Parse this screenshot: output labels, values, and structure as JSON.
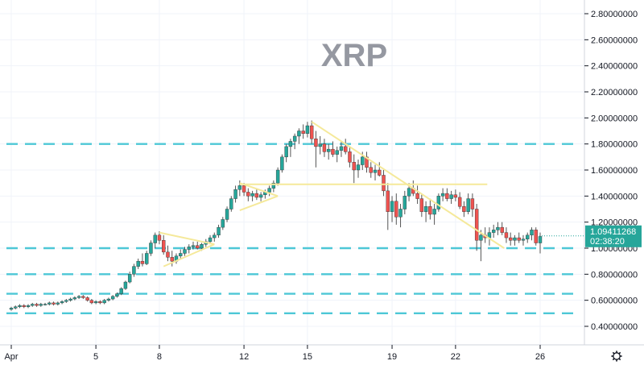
{
  "chart_data": {
    "type": "candlestick",
    "title": "XRP",
    "ylim": [
      0.3,
      2.9
    ],
    "y_ticks": [
      "2.80000000",
      "2.60000000",
      "2.40000000",
      "2.20000000",
      "2.00000000",
      "1.80000000",
      "1.60000000",
      "1.40000000",
      "1.20000000",
      "1.00000000",
      "0.80000000",
      "0.60000000",
      "0.40000000"
    ],
    "y_tick_values": [
      2.8,
      2.6,
      2.4,
      2.2,
      2.0,
      1.8,
      1.6,
      1.4,
      1.2,
      1.0,
      0.8,
      0.6,
      0.4
    ],
    "x_ticks": [
      "Apr",
      "5",
      "8",
      "12",
      "15",
      "19",
      "22",
      "26"
    ],
    "x_tick_days": [
      1,
      5,
      8,
      12,
      15,
      19,
      22,
      26
    ],
    "current_price": "1.09411268",
    "countdown": "02:38:20",
    "current_price_value": 1.0941,
    "support_resistance_levels": [
      1.8,
      1.0,
      0.8,
      0.65,
      0.5
    ],
    "yellow_lines": [
      {
        "from": [
          7.0,
          1.12
        ],
        "to": [
          9.6,
          1.03
        ]
      },
      {
        "from": [
          7.2,
          0.86
        ],
        "to": [
          9.6,
          1.03
        ]
      },
      {
        "from": [
          10.8,
          1.5
        ],
        "to": [
          12.6,
          1.4
        ]
      },
      {
        "from": [
          10.8,
          1.29
        ],
        "to": [
          12.6,
          1.4
        ]
      },
      {
        "from": [
          10.8,
          1.49
        ],
        "to": [
          22.5,
          1.49
        ]
      },
      {
        "from": [
          14.2,
          1.97
        ],
        "to": [
          23.3,
          1.0
        ]
      }
    ],
    "candles": [
      [
        0.0,
        0.53,
        0.55,
        0.52,
        0.54
      ],
      [
        0.2,
        0.54,
        0.56,
        0.53,
        0.55
      ],
      [
        0.4,
        0.55,
        0.57,
        0.54,
        0.56
      ],
      [
        0.6,
        0.56,
        0.57,
        0.54,
        0.55
      ],
      [
        0.8,
        0.55,
        0.57,
        0.54,
        0.56
      ],
      [
        1.0,
        0.56,
        0.58,
        0.55,
        0.57
      ],
      [
        1.2,
        0.57,
        0.58,
        0.55,
        0.56
      ],
      [
        1.4,
        0.56,
        0.58,
        0.55,
        0.57
      ],
      [
        1.6,
        0.57,
        0.58,
        0.56,
        0.57
      ],
      [
        1.8,
        0.57,
        0.59,
        0.56,
        0.58
      ],
      [
        2.0,
        0.58,
        0.59,
        0.56,
        0.57
      ],
      [
        2.2,
        0.57,
        0.59,
        0.56,
        0.58
      ],
      [
        2.4,
        0.58,
        0.6,
        0.57,
        0.59
      ],
      [
        2.6,
        0.59,
        0.61,
        0.58,
        0.6
      ],
      [
        2.8,
        0.6,
        0.62,
        0.59,
        0.61
      ],
      [
        3.0,
        0.61,
        0.63,
        0.6,
        0.62
      ],
      [
        3.2,
        0.62,
        0.64,
        0.61,
        0.63
      ],
      [
        3.4,
        0.63,
        0.64,
        0.61,
        0.62
      ],
      [
        3.6,
        0.62,
        0.63,
        0.59,
        0.6
      ],
      [
        3.8,
        0.6,
        0.61,
        0.57,
        0.58
      ],
      [
        4.0,
        0.58,
        0.6,
        0.57,
        0.59
      ],
      [
        4.2,
        0.59,
        0.6,
        0.57,
        0.58
      ],
      [
        4.4,
        0.58,
        0.61,
        0.57,
        0.6
      ],
      [
        4.6,
        0.6,
        0.62,
        0.59,
        0.61
      ],
      [
        4.8,
        0.61,
        0.64,
        0.6,
        0.63
      ],
      [
        5.0,
        0.63,
        0.66,
        0.62,
        0.65
      ],
      [
        5.2,
        0.65,
        0.7,
        0.64,
        0.69
      ],
      [
        5.4,
        0.69,
        0.75,
        0.68,
        0.74
      ],
      [
        5.6,
        0.74,
        0.82,
        0.73,
        0.8
      ],
      [
        5.8,
        0.8,
        0.88,
        0.78,
        0.86
      ],
      [
        6.0,
        0.86,
        0.92,
        0.84,
        0.9
      ],
      [
        6.2,
        0.9,
        0.96,
        0.86,
        0.88
      ],
      [
        6.4,
        0.88,
        0.98,
        0.87,
        0.96
      ],
      [
        6.6,
        0.96,
        1.06,
        0.94,
        1.04
      ],
      [
        6.8,
        1.04,
        1.12,
        1.0,
        1.1
      ],
      [
        7.0,
        1.1,
        1.13,
        1.03,
        1.06
      ],
      [
        7.2,
        1.06,
        1.1,
        0.95,
        0.97
      ],
      [
        7.4,
        0.97,
        1.02,
        0.9,
        0.93
      ],
      [
        7.6,
        0.93,
        0.98,
        0.86,
        0.9
      ],
      [
        7.8,
        0.9,
        0.96,
        0.88,
        0.94
      ],
      [
        8.0,
        0.94,
        0.99,
        0.92,
        0.96
      ],
      [
        8.2,
        0.96,
        1.01,
        0.94,
        0.99
      ],
      [
        8.4,
        0.99,
        1.03,
        0.96,
        1.01
      ],
      [
        8.6,
        1.01,
        1.05,
        0.99,
        1.02
      ],
      [
        8.8,
        1.02,
        1.05,
        0.99,
        1.0
      ],
      [
        9.0,
        1.0,
        1.04,
        0.98,
        1.03
      ],
      [
        9.2,
        1.03,
        1.07,
        1.01,
        1.05
      ],
      [
        9.4,
        1.05,
        1.1,
        1.03,
        1.08
      ],
      [
        9.6,
        1.08,
        1.12,
        1.05,
        1.1
      ],
      [
        9.8,
        1.1,
        1.18,
        1.08,
        1.16
      ],
      [
        10.0,
        1.16,
        1.24,
        1.14,
        1.22
      ],
      [
        10.2,
        1.22,
        1.32,
        1.2,
        1.3
      ],
      [
        10.4,
        1.3,
        1.4,
        1.28,
        1.38
      ],
      [
        10.6,
        1.38,
        1.48,
        1.35,
        1.45
      ],
      [
        10.8,
        1.45,
        1.52,
        1.4,
        1.48
      ],
      [
        11.0,
        1.48,
        1.5,
        1.4,
        1.43
      ],
      [
        11.2,
        1.43,
        1.46,
        1.36,
        1.4
      ],
      [
        11.4,
        1.4,
        1.44,
        1.36,
        1.42
      ],
      [
        11.6,
        1.42,
        1.45,
        1.37,
        1.39
      ],
      [
        11.8,
        1.39,
        1.43,
        1.36,
        1.41
      ],
      [
        12.0,
        1.41,
        1.45,
        1.38,
        1.43
      ],
      [
        12.2,
        1.43,
        1.48,
        1.4,
        1.46
      ],
      [
        12.4,
        1.46,
        1.52,
        1.43,
        1.5
      ],
      [
        12.6,
        1.5,
        1.62,
        1.48,
        1.6
      ],
      [
        12.8,
        1.6,
        1.72,
        1.58,
        1.7
      ],
      [
        13.0,
        1.7,
        1.8,
        1.66,
        1.78
      ],
      [
        13.2,
        1.78,
        1.84,
        1.7,
        1.82
      ],
      [
        13.4,
        1.82,
        1.88,
        1.76,
        1.86
      ],
      [
        13.6,
        1.86,
        1.92,
        1.8,
        1.9
      ],
      [
        13.8,
        1.9,
        1.95,
        1.84,
        1.88
      ],
      [
        14.0,
        1.88,
        1.97,
        1.85,
        1.94
      ],
      [
        14.2,
        1.94,
        1.98,
        1.8,
        1.84
      ],
      [
        14.4,
        1.84,
        1.9,
        1.62,
        1.78
      ],
      [
        14.6,
        1.78,
        1.86,
        1.72,
        1.8
      ],
      [
        14.8,
        1.8,
        1.84,
        1.7,
        1.74
      ],
      [
        15.0,
        1.74,
        1.8,
        1.68,
        1.76
      ],
      [
        15.2,
        1.76,
        1.82,
        1.7,
        1.72
      ],
      [
        15.4,
        1.72,
        1.78,
        1.66,
        1.75
      ],
      [
        15.6,
        1.75,
        1.82,
        1.7,
        1.78
      ],
      [
        15.8,
        1.78,
        1.84,
        1.72,
        1.74
      ],
      [
        16.0,
        1.74,
        1.78,
        1.62,
        1.66
      ],
      [
        16.2,
        1.66,
        1.72,
        1.5,
        1.6
      ],
      [
        16.4,
        1.6,
        1.68,
        1.54,
        1.64
      ],
      [
        16.6,
        1.64,
        1.74,
        1.6,
        1.7
      ],
      [
        16.8,
        1.7,
        1.74,
        1.58,
        1.62
      ],
      [
        17.0,
        1.62,
        1.66,
        1.54,
        1.58
      ],
      [
        17.2,
        1.58,
        1.64,
        1.52,
        1.6
      ],
      [
        17.4,
        1.6,
        1.66,
        1.55,
        1.56
      ],
      [
        17.6,
        1.56,
        1.6,
        1.4,
        1.44
      ],
      [
        17.8,
        1.44,
        1.5,
        1.14,
        1.28
      ],
      [
        18.0,
        1.28,
        1.4,
        1.2,
        1.36
      ],
      [
        18.2,
        1.36,
        1.42,
        1.18,
        1.24
      ],
      [
        18.4,
        1.24,
        1.34,
        1.16,
        1.3
      ],
      [
        18.6,
        1.3,
        1.44,
        1.26,
        1.4
      ],
      [
        18.8,
        1.4,
        1.5,
        1.36,
        1.46
      ],
      [
        19.0,
        1.46,
        1.52,
        1.4,
        1.42
      ],
      [
        19.2,
        1.42,
        1.48,
        1.34,
        1.38
      ],
      [
        19.4,
        1.38,
        1.42,
        1.24,
        1.28
      ],
      [
        19.6,
        1.28,
        1.36,
        1.2,
        1.32
      ],
      [
        19.8,
        1.32,
        1.38,
        1.22,
        1.26
      ],
      [
        20.0,
        1.26,
        1.34,
        1.18,
        1.3
      ],
      [
        20.2,
        1.3,
        1.42,
        1.28,
        1.4
      ],
      [
        20.4,
        1.4,
        1.46,
        1.36,
        1.42
      ],
      [
        20.6,
        1.42,
        1.46,
        1.36,
        1.38
      ],
      [
        20.8,
        1.38,
        1.44,
        1.34,
        1.41
      ],
      [
        21.0,
        1.41,
        1.45,
        1.36,
        1.39
      ],
      [
        21.2,
        1.39,
        1.43,
        1.3,
        1.32
      ],
      [
        21.4,
        1.32,
        1.36,
        1.24,
        1.28
      ],
      [
        21.6,
        1.28,
        1.42,
        1.26,
        1.38
      ],
      [
        21.8,
        1.38,
        1.42,
        1.24,
        1.3
      ],
      [
        22.0,
        1.3,
        1.34,
        0.98,
        1.06
      ],
      [
        22.2,
        1.06,
        1.14,
        0.9,
        1.1
      ],
      [
        22.4,
        1.1,
        1.16,
        1.04,
        1.08
      ],
      [
        22.6,
        1.08,
        1.16,
        1.02,
        1.12
      ],
      [
        22.8,
        1.12,
        1.18,
        1.08,
        1.14
      ],
      [
        23.0,
        1.14,
        1.2,
        1.1,
        1.16
      ],
      [
        23.2,
        1.16,
        1.2,
        1.1,
        1.12
      ],
      [
        23.4,
        1.12,
        1.16,
        1.04,
        1.08
      ],
      [
        23.6,
        1.08,
        1.12,
        1.02,
        1.06
      ],
      [
        23.8,
        1.06,
        1.1,
        1.02,
        1.08
      ],
      [
        24.0,
        1.08,
        1.12,
        1.04,
        1.06
      ],
      [
        24.2,
        1.06,
        1.1,
        1.02,
        1.07
      ],
      [
        24.4,
        1.07,
        1.12,
        1.04,
        1.1
      ],
      [
        24.6,
        1.1,
        1.16,
        1.06,
        1.14
      ],
      [
        24.8,
        1.14,
        1.16,
        1.02,
        1.04
      ],
      [
        25.0,
        1.04,
        1.12,
        0.96,
        1.09
      ]
    ]
  }
}
